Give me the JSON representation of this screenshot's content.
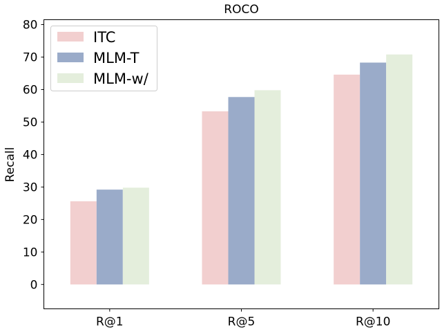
{
  "chart_data": {
    "type": "bar",
    "title": "ROCO",
    "xlabel": "",
    "ylabel": "Recall",
    "categories": [
      "R@1",
      "R@5",
      "R@10"
    ],
    "series": [
      {
        "name": "ITC",
        "values": [
          25.6,
          53.3,
          64.6
        ],
        "color": "#f2cfcf"
      },
      {
        "name": "MLM-T",
        "values": [
          29.2,
          57.7,
          68.3
        ],
        "color": "#9aabc9"
      },
      {
        "name": "MLM-w/",
        "values": [
          29.8,
          59.8,
          70.8
        ],
        "color": "#e4eedc"
      }
    ],
    "ylim": [
      -7.5,
      81.5
    ],
    "yticks": [
      0,
      10,
      20,
      30,
      40,
      50,
      60,
      70,
      80
    ],
    "grid": false,
    "legend_position": "top-left"
  }
}
